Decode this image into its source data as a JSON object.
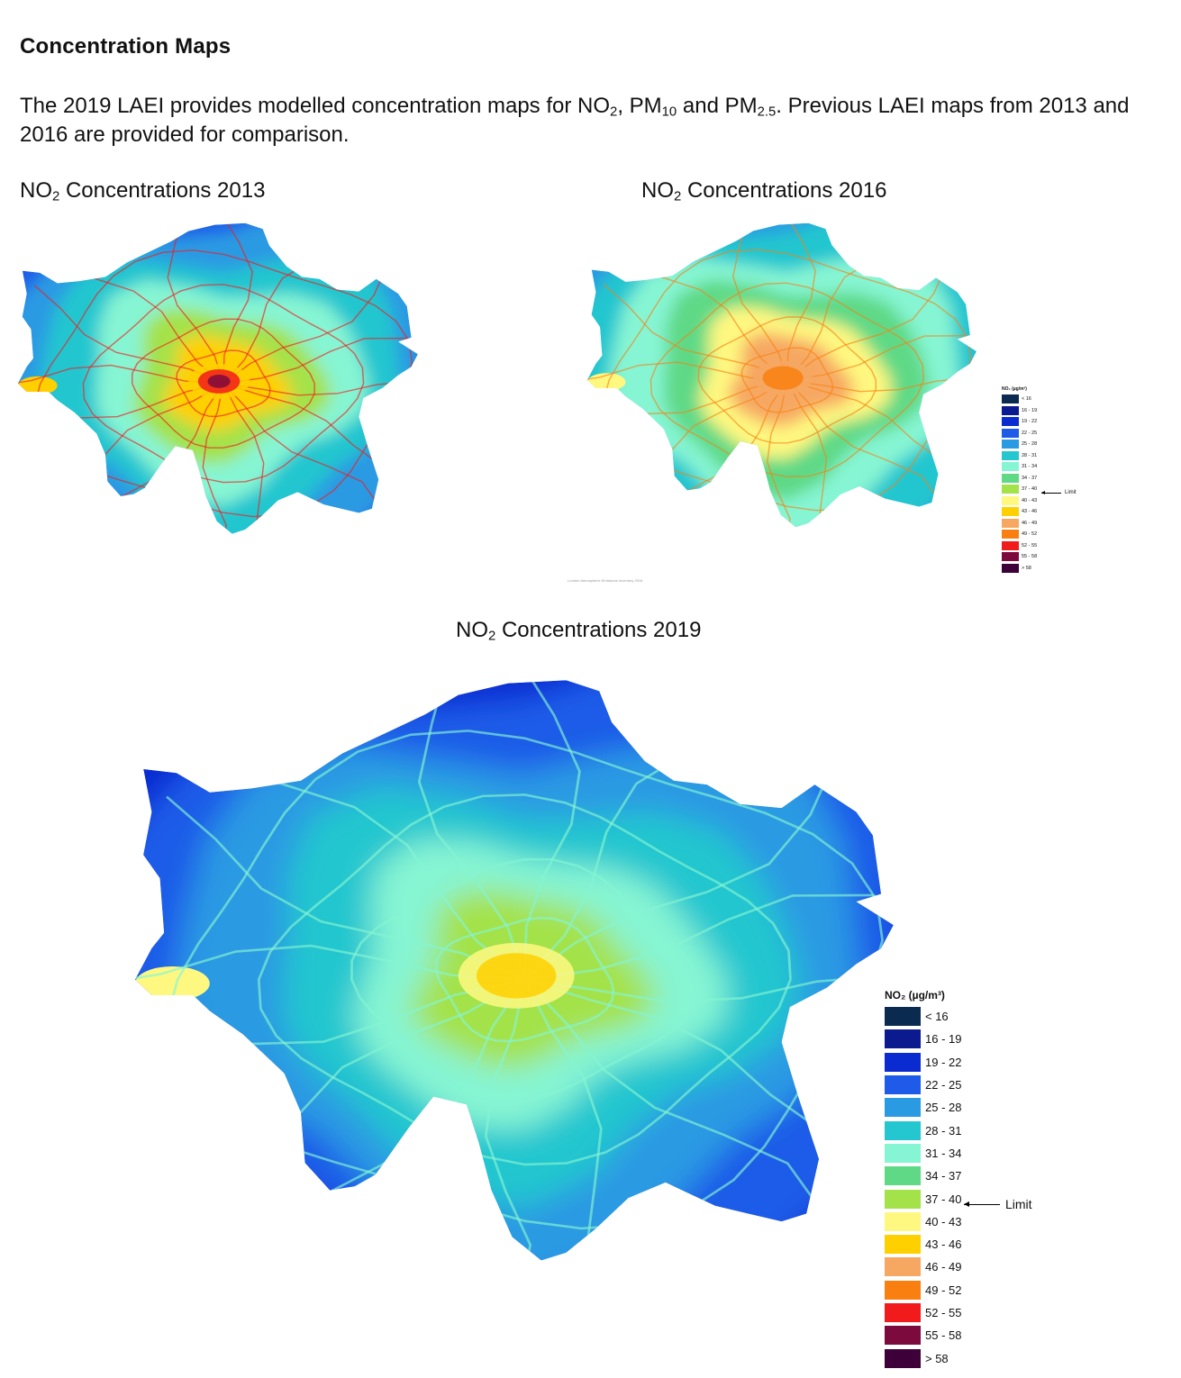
{
  "heading": "Concentration Maps",
  "intro": {
    "p1": "The 2019 LAEI provides modelled concentration maps for NO",
    "s1": "2",
    "p2": ", PM",
    "s2": "10",
    "p3": " and PM",
    "s3": "2.5",
    "p4": ". Previous LAEI maps from 2013 and 2016 are provided for comparison."
  },
  "maps": {
    "m2013": {
      "pre": "NO",
      "sub": "2",
      "post": " Concentrations 2013"
    },
    "m2016": {
      "pre": "NO",
      "sub": "2",
      "post": " Concentrations 2016"
    },
    "m2019": {
      "pre": "NO",
      "sub": "2",
      "post": " Concentrations 2019"
    }
  },
  "footnote": "London Atmospheric Emissions Inventory 2016",
  "legend": {
    "title": "NO₂ (µg/m³)",
    "limit_label": "Limit",
    "limit_class_index": 8,
    "classes": [
      {
        "label": "< 16",
        "color": "#0b2a4f"
      },
      {
        "label": "16 - 19",
        "color": "#0b1a8f"
      },
      {
        "label": "19 - 22",
        "color": "#0a2bd0"
      },
      {
        "label": "22 - 25",
        "color": "#1d5be8"
      },
      {
        "label": "25 - 28",
        "color": "#2a9ae3"
      },
      {
        "label": "28 - 31",
        "color": "#24c6cf"
      },
      {
        "label": "31 - 34",
        "color": "#86f5d3"
      },
      {
        "label": "34 - 37",
        "color": "#5fd986"
      },
      {
        "label": "37 - 40",
        "color": "#a4e24a"
      },
      {
        "label": "40 - 43",
        "color": "#fff880"
      },
      {
        "label": "43 - 46",
        "color": "#ffd000"
      },
      {
        "label": "46 - 49",
        "color": "#f6a863"
      },
      {
        "label": "49 - 52",
        "color": "#f98010"
      },
      {
        "label": "52 - 55",
        "color": "#f21b1b"
      },
      {
        "label": "55 - 58",
        "color": "#7d0a3c"
      },
      {
        "label": "> 58",
        "color": "#3d0038"
      }
    ]
  }
}
